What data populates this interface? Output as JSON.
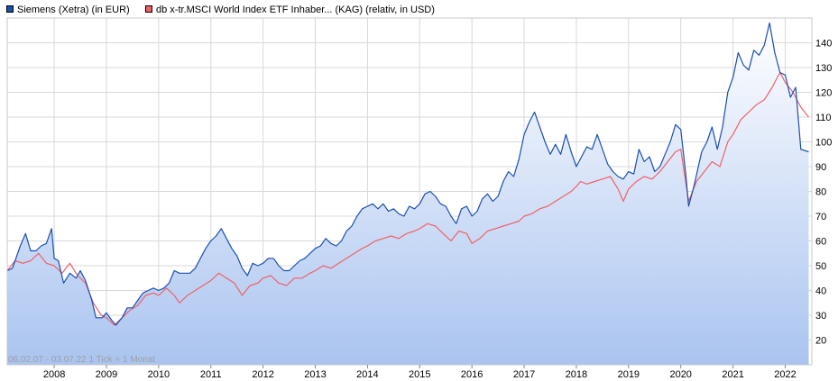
{
  "legend": {
    "siemens": "Siemens (Xetra) (in EUR)",
    "msci": "db x-tr.MSCI World Index ETF Inhaber... (KAG) (relativ, in USD)"
  },
  "period_label": "06.02.07 - 03.07.22   1 Tick = 1 Monat",
  "colors": {
    "siemens_line": "#1a4fb0",
    "siemens_fill_top": "#ffffff",
    "siemens_fill_bottom": "#aac4f0",
    "msci_line": "#f0606a",
    "grid": "#d8d8d8",
    "plot_border": "#c8c8c8"
  },
  "chart_data": {
    "type": "line",
    "x_ticks": [
      "2008",
      "2009",
      "2010",
      "2011",
      "2012",
      "2013",
      "2014",
      "2015",
      "2016",
      "2017",
      "2018",
      "2019",
      "2020",
      "2021",
      "2022"
    ],
    "y_ticks": [
      20,
      30,
      40,
      50,
      60,
      70,
      80,
      90,
      100,
      110,
      120,
      130,
      140
    ],
    "ylim": [
      10,
      150
    ],
    "xlim": [
      2007.1,
      2022.51
    ],
    "grid": true,
    "series": [
      {
        "name": "Siemens (Xetra) (in EUR)",
        "area": true,
        "points": [
          [
            2007.1,
            48
          ],
          [
            2007.2,
            49
          ],
          [
            2007.35,
            58
          ],
          [
            2007.45,
            63
          ],
          [
            2007.55,
            56
          ],
          [
            2007.65,
            56
          ],
          [
            2007.75,
            58
          ],
          [
            2007.85,
            59
          ],
          [
            2007.95,
            65
          ],
          [
            2008.0,
            53
          ],
          [
            2008.08,
            52
          ],
          [
            2008.18,
            43
          ],
          [
            2008.3,
            47
          ],
          [
            2008.42,
            45
          ],
          [
            2008.5,
            48
          ],
          [
            2008.6,
            44
          ],
          [
            2008.72,
            36
          ],
          [
            2008.8,
            29
          ],
          [
            2008.92,
            29
          ],
          [
            2009.0,
            31
          ],
          [
            2009.1,
            28
          ],
          [
            2009.18,
            26
          ],
          [
            2009.3,
            29
          ],
          [
            2009.4,
            33
          ],
          [
            2009.5,
            33
          ],
          [
            2009.6,
            36
          ],
          [
            2009.7,
            39
          ],
          [
            2009.8,
            40
          ],
          [
            2009.9,
            41
          ],
          [
            2010.0,
            40
          ],
          [
            2010.1,
            41
          ],
          [
            2010.2,
            43
          ],
          [
            2010.3,
            48
          ],
          [
            2010.4,
            47
          ],
          [
            2010.5,
            47
          ],
          [
            2010.6,
            47
          ],
          [
            2010.7,
            49
          ],
          [
            2010.8,
            53
          ],
          [
            2010.9,
            57
          ],
          [
            2011.0,
            60
          ],
          [
            2011.1,
            62
          ],
          [
            2011.2,
            65
          ],
          [
            2011.3,
            61
          ],
          [
            2011.4,
            57
          ],
          [
            2011.5,
            54
          ],
          [
            2011.6,
            49
          ],
          [
            2011.7,
            46
          ],
          [
            2011.8,
            51
          ],
          [
            2011.9,
            50
          ],
          [
            2012.0,
            51
          ],
          [
            2012.1,
            53
          ],
          [
            2012.2,
            53
          ],
          [
            2012.3,
            50
          ],
          [
            2012.4,
            48
          ],
          [
            2012.5,
            48
          ],
          [
            2012.6,
            50
          ],
          [
            2012.7,
            52
          ],
          [
            2012.8,
            53
          ],
          [
            2012.9,
            55
          ],
          [
            2013.0,
            57
          ],
          [
            2013.1,
            58
          ],
          [
            2013.2,
            61
          ],
          [
            2013.3,
            59
          ],
          [
            2013.4,
            58
          ],
          [
            2013.5,
            60
          ],
          [
            2013.6,
            64
          ],
          [
            2013.7,
            66
          ],
          [
            2013.8,
            70
          ],
          [
            2013.9,
            73
          ],
          [
            2014.0,
            74
          ],
          [
            2014.1,
            75
          ],
          [
            2014.2,
            73
          ],
          [
            2014.3,
            75
          ],
          [
            2014.4,
            72
          ],
          [
            2014.5,
            73
          ],
          [
            2014.6,
            71
          ],
          [
            2014.7,
            70
          ],
          [
            2014.8,
            74
          ],
          [
            2014.9,
            73
          ],
          [
            2015.0,
            75
          ],
          [
            2015.1,
            79
          ],
          [
            2015.2,
            80
          ],
          [
            2015.3,
            78
          ],
          [
            2015.4,
            75
          ],
          [
            2015.5,
            74
          ],
          [
            2015.6,
            70
          ],
          [
            2015.7,
            67
          ],
          [
            2015.8,
            73
          ],
          [
            2015.9,
            74
          ],
          [
            2016.0,
            70
          ],
          [
            2016.1,
            72
          ],
          [
            2016.2,
            77
          ],
          [
            2016.3,
            79
          ],
          [
            2016.4,
            76
          ],
          [
            2016.5,
            78
          ],
          [
            2016.6,
            84
          ],
          [
            2016.7,
            88
          ],
          [
            2016.8,
            86
          ],
          [
            2016.9,
            93
          ],
          [
            2017.0,
            103
          ],
          [
            2017.1,
            108
          ],
          [
            2017.2,
            112
          ],
          [
            2017.3,
            106
          ],
          [
            2017.4,
            100
          ],
          [
            2017.5,
            95
          ],
          [
            2017.6,
            99
          ],
          [
            2017.7,
            95
          ],
          [
            2017.8,
            103
          ],
          [
            2017.9,
            96
          ],
          [
            2018.0,
            90
          ],
          [
            2018.1,
            94
          ],
          [
            2018.2,
            98
          ],
          [
            2018.3,
            97
          ],
          [
            2018.4,
            103
          ],
          [
            2018.5,
            97
          ],
          [
            2018.6,
            91
          ],
          [
            2018.7,
            88
          ],
          [
            2018.8,
            86
          ],
          [
            2018.9,
            85
          ],
          [
            2019.0,
            88
          ],
          [
            2019.1,
            87
          ],
          [
            2019.2,
            97
          ],
          [
            2019.3,
            92
          ],
          [
            2019.4,
            94
          ],
          [
            2019.5,
            88
          ],
          [
            2019.6,
            90
          ],
          [
            2019.7,
            95
          ],
          [
            2019.8,
            100
          ],
          [
            2019.9,
            107
          ],
          [
            2020.0,
            105
          ],
          [
            2020.1,
            86
          ],
          [
            2020.15,
            74
          ],
          [
            2020.25,
            82
          ],
          [
            2020.4,
            96
          ],
          [
            2020.5,
            100
          ],
          [
            2020.6,
            106
          ],
          [
            2020.7,
            97
          ],
          [
            2020.8,
            106
          ],
          [
            2020.9,
            120
          ],
          [
            2021.0,
            126
          ],
          [
            2021.1,
            136
          ],
          [
            2021.2,
            131
          ],
          [
            2021.3,
            129
          ],
          [
            2021.4,
            137
          ],
          [
            2021.5,
            135
          ],
          [
            2021.6,
            139
          ],
          [
            2021.7,
            148
          ],
          [
            2021.8,
            136
          ],
          [
            2021.9,
            128
          ],
          [
            2022.0,
            127
          ],
          [
            2022.1,
            118
          ],
          [
            2022.2,
            122
          ],
          [
            2022.3,
            97
          ],
          [
            2022.45,
            96
          ]
        ]
      },
      {
        "name": "db x-tr.MSCI World Index ETF Inhaber... (KAG) (relativ, in USD)",
        "area": false,
        "points": [
          [
            2007.1,
            48
          ],
          [
            2007.25,
            52
          ],
          [
            2007.4,
            51
          ],
          [
            2007.55,
            52
          ],
          [
            2007.7,
            55
          ],
          [
            2007.85,
            51
          ],
          [
            2008.0,
            50
          ],
          [
            2008.15,
            47
          ],
          [
            2008.3,
            51
          ],
          [
            2008.45,
            46
          ],
          [
            2008.6,
            43
          ],
          [
            2008.75,
            35
          ],
          [
            2008.9,
            30
          ],
          [
            2009.0,
            29
          ],
          [
            2009.15,
            26
          ],
          [
            2009.3,
            29
          ],
          [
            2009.45,
            32
          ],
          [
            2009.6,
            34
          ],
          [
            2009.75,
            38
          ],
          [
            2009.9,
            39
          ],
          [
            2010.0,
            38
          ],
          [
            2010.15,
            41
          ],
          [
            2010.3,
            38
          ],
          [
            2010.4,
            35
          ],
          [
            2010.55,
            38
          ],
          [
            2010.7,
            40
          ],
          [
            2010.85,
            42
          ],
          [
            2011.0,
            44
          ],
          [
            2011.15,
            47
          ],
          [
            2011.3,
            45
          ],
          [
            2011.45,
            43
          ],
          [
            2011.6,
            38
          ],
          [
            2011.75,
            42
          ],
          [
            2011.9,
            43
          ],
          [
            2012.0,
            45
          ],
          [
            2012.15,
            46
          ],
          [
            2012.3,
            43
          ],
          [
            2012.45,
            42
          ],
          [
            2012.6,
            45
          ],
          [
            2012.75,
            45
          ],
          [
            2012.9,
            47
          ],
          [
            2013.0,
            48
          ],
          [
            2013.15,
            50
          ],
          [
            2013.3,
            49
          ],
          [
            2013.45,
            51
          ],
          [
            2013.6,
            53
          ],
          [
            2013.75,
            55
          ],
          [
            2013.9,
            57
          ],
          [
            2014.0,
            58
          ],
          [
            2014.15,
            60
          ],
          [
            2014.3,
            61
          ],
          [
            2014.45,
            62
          ],
          [
            2014.6,
            61
          ],
          [
            2014.75,
            63
          ],
          [
            2014.9,
            64
          ],
          [
            2015.0,
            65
          ],
          [
            2015.15,
            67
          ],
          [
            2015.3,
            66
          ],
          [
            2015.45,
            63
          ],
          [
            2015.6,
            60
          ],
          [
            2015.75,
            64
          ],
          [
            2015.9,
            63
          ],
          [
            2016.0,
            59
          ],
          [
            2016.15,
            61
          ],
          [
            2016.3,
            64
          ],
          [
            2016.45,
            65
          ],
          [
            2016.6,
            66
          ],
          [
            2016.75,
            67
          ],
          [
            2016.9,
            68
          ],
          [
            2017.0,
            70
          ],
          [
            2017.15,
            71
          ],
          [
            2017.3,
            73
          ],
          [
            2017.45,
            74
          ],
          [
            2017.6,
            76
          ],
          [
            2017.75,
            78
          ],
          [
            2017.9,
            80
          ],
          [
            2018.0,
            82
          ],
          [
            2018.08,
            84
          ],
          [
            2018.2,
            83
          ],
          [
            2018.35,
            84
          ],
          [
            2018.5,
            85
          ],
          [
            2018.65,
            86
          ],
          [
            2018.8,
            81
          ],
          [
            2018.9,
            76
          ],
          [
            2019.0,
            81
          ],
          [
            2019.15,
            84
          ],
          [
            2019.3,
            86
          ],
          [
            2019.45,
            85
          ],
          [
            2019.6,
            88
          ],
          [
            2019.75,
            92
          ],
          [
            2019.9,
            96
          ],
          [
            2020.0,
            97
          ],
          [
            2020.15,
            76
          ],
          [
            2020.3,
            84
          ],
          [
            2020.45,
            88
          ],
          [
            2020.6,
            92
          ],
          [
            2020.75,
            90
          ],
          [
            2020.9,
            100
          ],
          [
            2021.0,
            103
          ],
          [
            2021.15,
            109
          ],
          [
            2021.3,
            112
          ],
          [
            2021.45,
            115
          ],
          [
            2021.6,
            117
          ],
          [
            2021.75,
            122
          ],
          [
            2021.9,
            128
          ],
          [
            2022.0,
            124
          ],
          [
            2022.15,
            120
          ],
          [
            2022.3,
            114
          ],
          [
            2022.45,
            110
          ]
        ]
      }
    ]
  }
}
